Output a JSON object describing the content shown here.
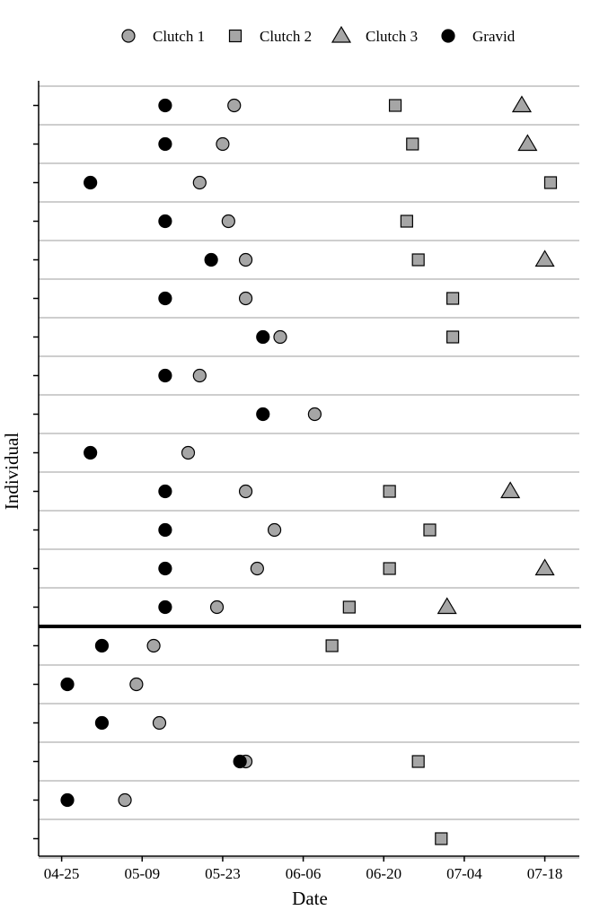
{
  "chart_data": {
    "type": "scatter",
    "xlabel": "Date",
    "ylabel": "Individual",
    "x_ticks": [
      "04-25",
      "05-09",
      "05-23",
      "06-06",
      "06-20",
      "07-04",
      "07-18"
    ],
    "xlim": [
      "04-21",
      "07-24"
    ],
    "grid": "horizontal lines between individuals",
    "legend_position": "top",
    "separator_after_row": 14,
    "series": [
      {
        "name": "Clutch 1",
        "marker": "circle",
        "color": "#a6a6a6"
      },
      {
        "name": "Clutch 2",
        "marker": "square",
        "color": "#a6a6a6"
      },
      {
        "name": "Clutch 3",
        "marker": "triangle",
        "color": "#a6a6a6"
      },
      {
        "name": "Gravid",
        "marker": "circle",
        "color": "#000000"
      }
    ],
    "individuals": [
      {
        "id": 1,
        "gravid": "05-13",
        "clutch1": "05-25",
        "clutch2": "06-22",
        "clutch3": "07-14"
      },
      {
        "id": 2,
        "gravid": "05-13",
        "clutch1": "05-23",
        "clutch2": "06-25",
        "clutch3": "07-15"
      },
      {
        "id": 3,
        "gravid": "04-30",
        "clutch1": "05-19",
        "clutch2": "07-19",
        "clutch3": null
      },
      {
        "id": 4,
        "gravid": "05-13",
        "clutch1": "05-24",
        "clutch2": "06-24",
        "clutch3": null
      },
      {
        "id": 5,
        "gravid": "05-21",
        "clutch1": "05-27",
        "clutch2": "06-26",
        "clutch3": "07-18"
      },
      {
        "id": 6,
        "gravid": "05-13",
        "clutch1": "05-27",
        "clutch2": "07-02",
        "clutch3": null
      },
      {
        "id": 7,
        "gravid": "05-30",
        "clutch1": "06-02",
        "clutch2": "07-02",
        "clutch3": null
      },
      {
        "id": 8,
        "gravid": "05-13",
        "clutch1": "05-19",
        "clutch2": null,
        "clutch3": null
      },
      {
        "id": 9,
        "gravid": "05-30",
        "clutch1": "06-08",
        "clutch2": null,
        "clutch3": null
      },
      {
        "id": 10,
        "gravid": "04-30",
        "clutch1": "05-17",
        "clutch2": null,
        "clutch3": null
      },
      {
        "id": 11,
        "gravid": "05-13",
        "clutch1": "05-27",
        "clutch2": "06-21",
        "clutch3": "07-12"
      },
      {
        "id": 12,
        "gravid": "05-13",
        "clutch1": "06-01",
        "clutch2": "06-28",
        "clutch3": null
      },
      {
        "id": 13,
        "gravid": "05-13",
        "clutch1": "05-29",
        "clutch2": "06-21",
        "clutch3": "07-18"
      },
      {
        "id": 14,
        "gravid": "05-13",
        "clutch1": "05-22",
        "clutch2": "06-14",
        "clutch3": "07-01"
      },
      {
        "id": 15,
        "gravid": "05-02",
        "clutch1": "05-11",
        "clutch2": "06-11",
        "clutch3": null
      },
      {
        "id": 16,
        "gravid": "04-26",
        "clutch1": "05-08",
        "clutch2": null,
        "clutch3": null
      },
      {
        "id": 17,
        "gravid": "05-02",
        "clutch1": "05-12",
        "clutch2": null,
        "clutch3": null
      },
      {
        "id": 18,
        "gravid": "05-26",
        "clutch1": "05-27",
        "clutch2": "06-26",
        "clutch3": null
      },
      {
        "id": 19,
        "gravid": "04-26",
        "clutch1": "05-06",
        "clutch2": null,
        "clutch3": null
      },
      {
        "id": 20,
        "gravid": null,
        "clutch1": null,
        "clutch2": "06-30",
        "clutch3": null
      }
    ]
  }
}
